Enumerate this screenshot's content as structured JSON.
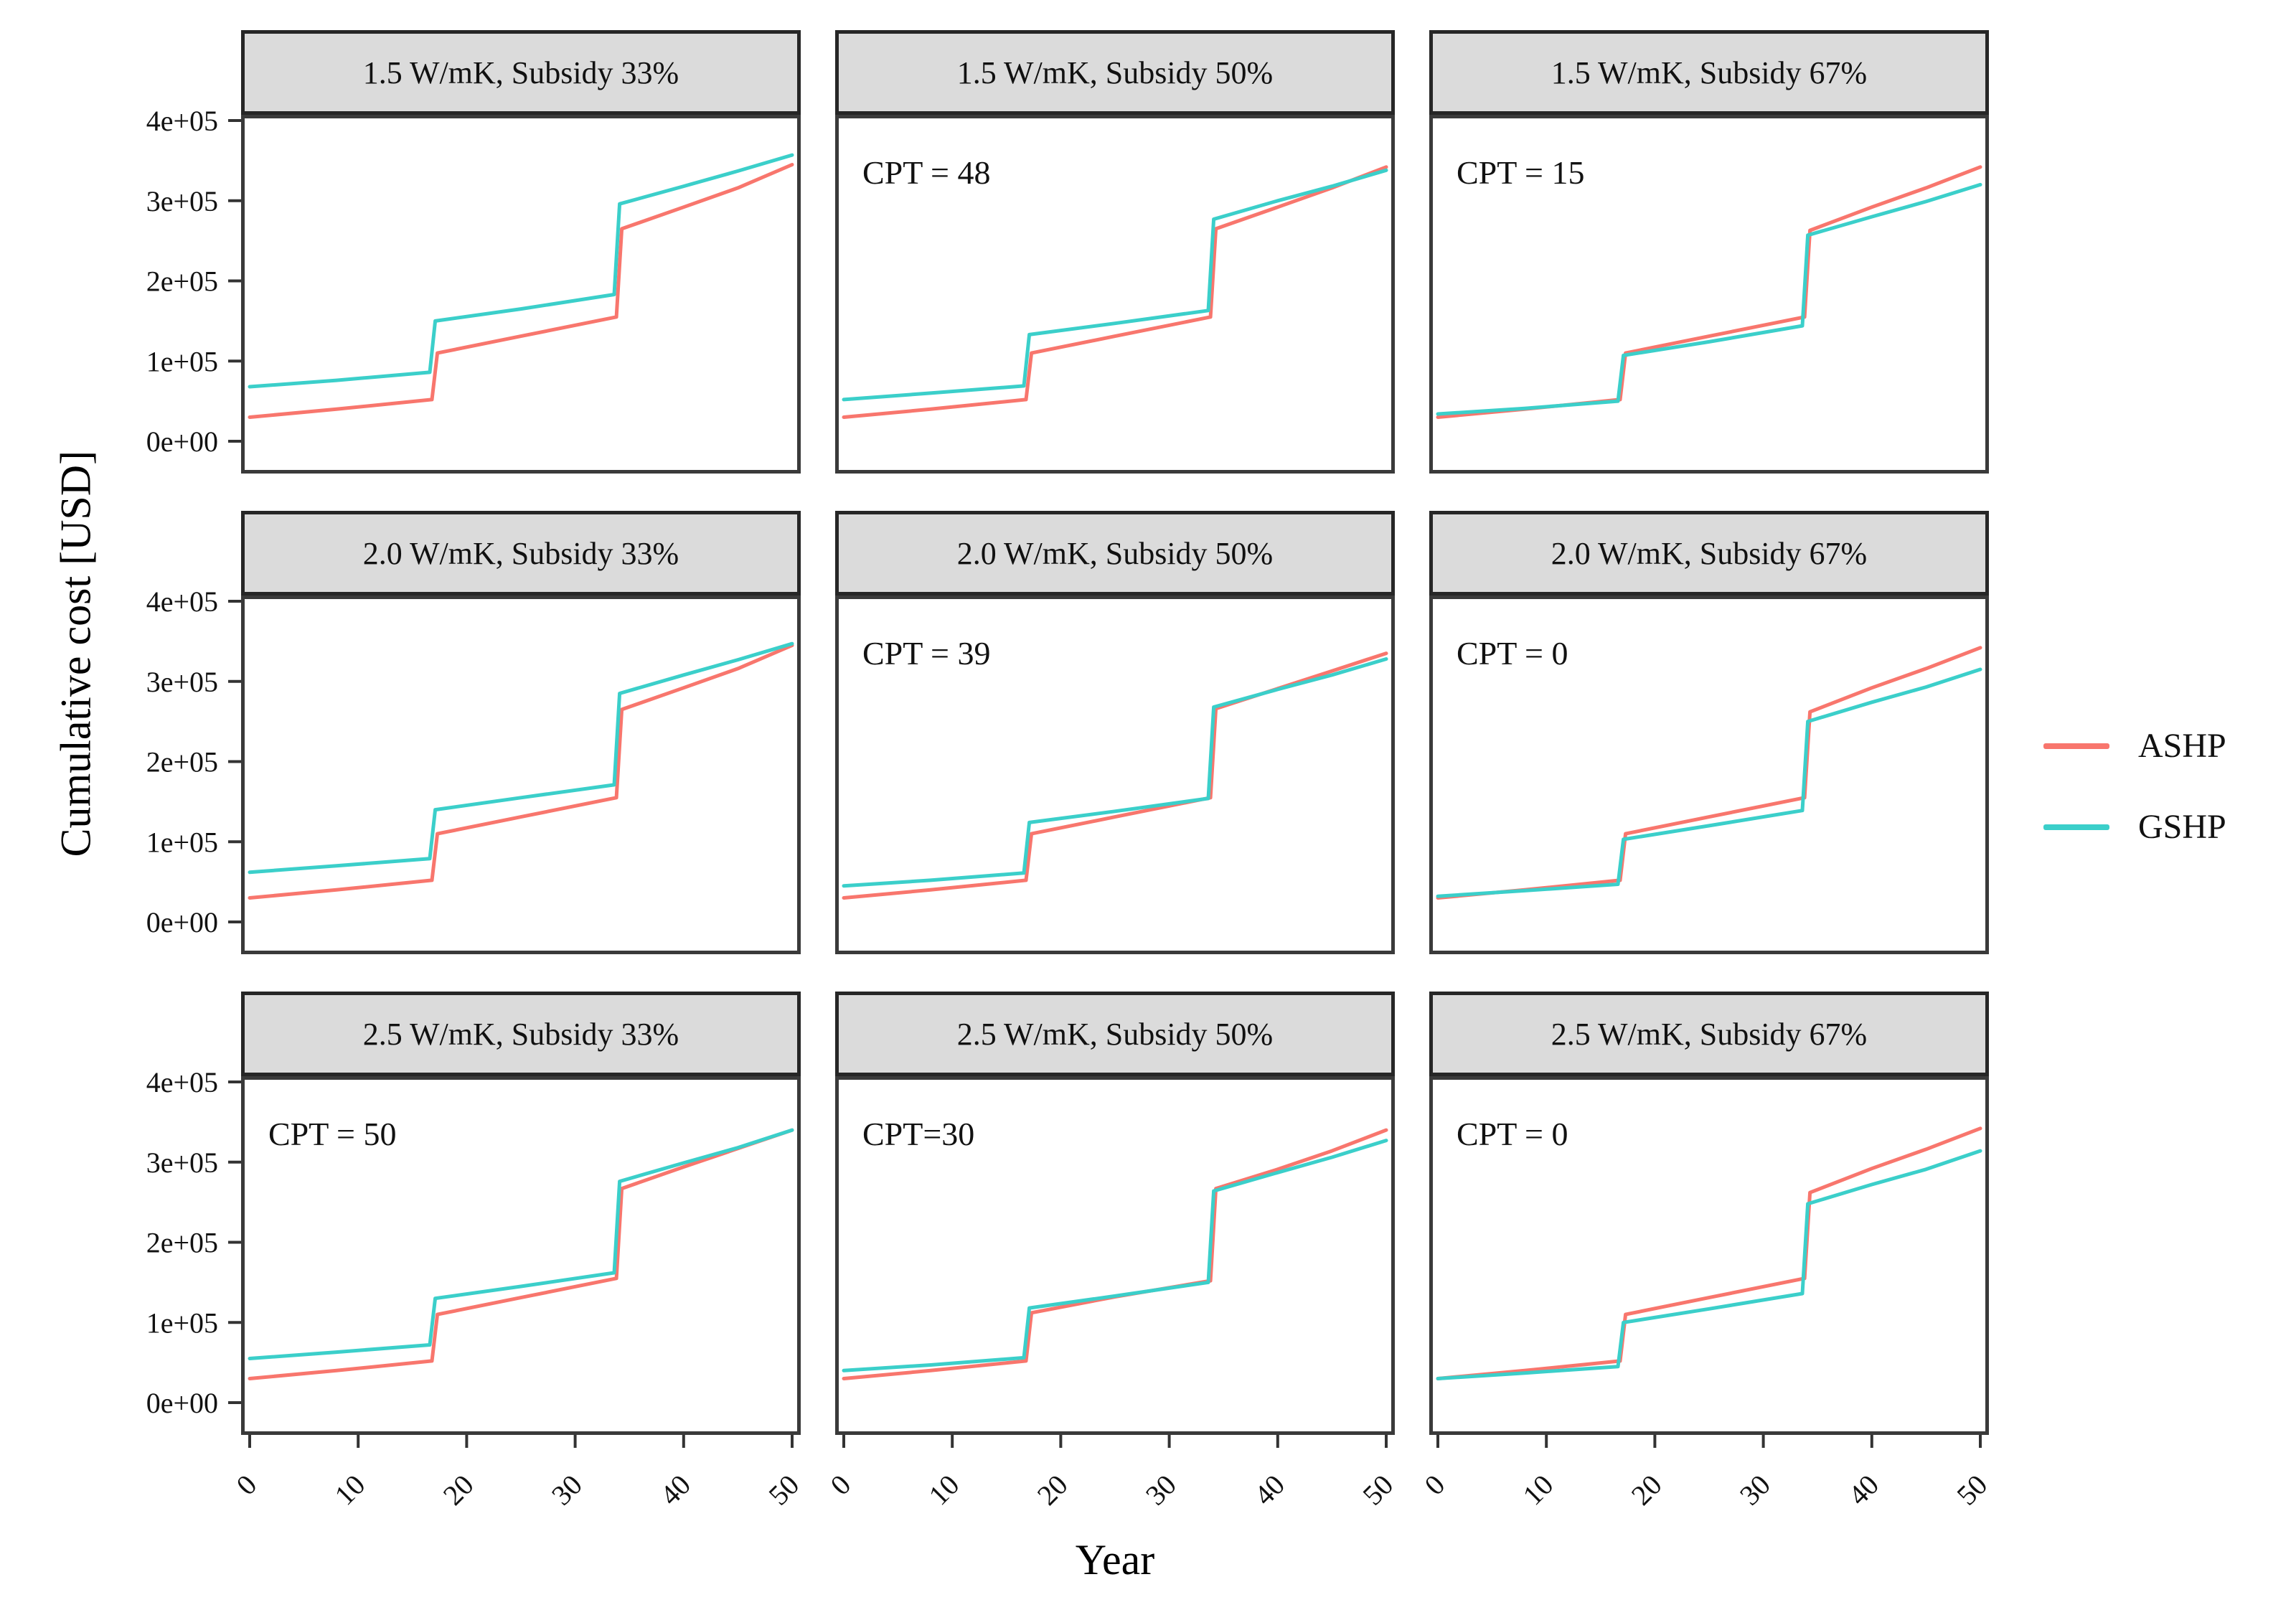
{
  "figure": {
    "y_axis_title": "Cumulative cost [USD]",
    "x_axis_title": "Year",
    "legend": {
      "entries": [
        {
          "label": "ASHP",
          "color": "#F8766D"
        },
        {
          "label": "GSHP",
          "color": "#3BCFCA"
        }
      ]
    }
  },
  "chart_data": {
    "type": "line",
    "layout": "facet-grid-3x3",
    "xlabel": "Year",
    "ylabel": "Cumulative cost [USD]",
    "xlim": [
      0,
      50
    ],
    "ylim": [
      0,
      400000
    ],
    "x_ticks": {
      "values": [
        0,
        10,
        20,
        30,
        40,
        50
      ],
      "labels": [
        "0",
        "10",
        "20",
        "30",
        "40",
        "50"
      ],
      "angle": 45
    },
    "y_ticks": {
      "values": [
        0,
        100000,
        200000,
        300000,
        400000
      ],
      "labels": [
        "0e+00",
        "1e+05",
        "2e+05",
        "3e+05",
        "4e+05"
      ]
    },
    "grid": "off",
    "legend_position": "right",
    "panels": [
      {
        "row": 0,
        "col": 0,
        "title": "1.5 W/mK, Subsidy 33%",
        "annotation": "",
        "series": [
          {
            "name": "ASHP",
            "color": "#F8766D",
            "points": [
              [
                0,
                30000
              ],
              [
                8,
                40000
              ],
              [
                16.8,
                52000
              ],
              [
                17.3,
                110000
              ],
              [
                25,
                131000
              ],
              [
                33.8,
                155000
              ],
              [
                34.3,
                265000
              ],
              [
                40,
                292000
              ],
              [
                45,
                316000
              ],
              [
                50,
                345000
              ]
            ]
          },
          {
            "name": "GSHP",
            "color": "#3BCFCA",
            "points": [
              [
                0,
                68000
              ],
              [
                8,
                76000
              ],
              [
                16.6,
                86000
              ],
              [
                17.1,
                150000
              ],
              [
                25,
                165000
              ],
              [
                33.6,
                183000
              ],
              [
                34.1,
                296000
              ],
              [
                40,
                318000
              ],
              [
                45,
                337000
              ],
              [
                50,
                357000
              ]
            ]
          }
        ]
      },
      {
        "row": 0,
        "col": 1,
        "title": "1.5 W/mK, Subsidy 50%",
        "annotation": "CPT = 48",
        "series": [
          {
            "name": "ASHP",
            "color": "#F8766D",
            "points": [
              [
                0,
                30000
              ],
              [
                8,
                40000
              ],
              [
                16.8,
                52000
              ],
              [
                17.3,
                110000
              ],
              [
                25,
                131000
              ],
              [
                33.8,
                155000
              ],
              [
                34.3,
                265000
              ],
              [
                40,
                292000
              ],
              [
                45,
                316000
              ],
              [
                50,
                342000
              ]
            ]
          },
          {
            "name": "GSHP",
            "color": "#3BCFCA",
            "points": [
              [
                0,
                52000
              ],
              [
                8,
                60000
              ],
              [
                16.6,
                69000
              ],
              [
                17.1,
                133000
              ],
              [
                25,
                147000
              ],
              [
                33.6,
                163000
              ],
              [
                34.1,
                277000
              ],
              [
                40,
                300000
              ],
              [
                45,
                318000
              ],
              [
                50,
                338000
              ]
            ]
          }
        ]
      },
      {
        "row": 0,
        "col": 2,
        "title": "1.5 W/mK, Subsidy 67%",
        "annotation": "CPT = 15",
        "series": [
          {
            "name": "ASHP",
            "color": "#F8766D",
            "points": [
              [
                0,
                30000
              ],
              [
                8,
                40000
              ],
              [
                16.8,
                52000
              ],
              [
                17.3,
                110000
              ],
              [
                25,
                131000
              ],
              [
                33.8,
                155000
              ],
              [
                34.3,
                263000
              ],
              [
                40,
                292000
              ],
              [
                45,
                316000
              ],
              [
                50,
                342000
              ]
            ]
          },
          {
            "name": "GSHP",
            "color": "#3BCFCA",
            "points": [
              [
                0,
                34000
              ],
              [
                8,
                41000
              ],
              [
                16.6,
                50000
              ],
              [
                17.1,
                107000
              ],
              [
                25,
                124000
              ],
              [
                33.6,
                144000
              ],
              [
                34.1,
                257000
              ],
              [
                40,
                280000
              ],
              [
                45,
                299000
              ],
              [
                50,
                320000
              ]
            ]
          }
        ]
      },
      {
        "row": 1,
        "col": 0,
        "title": "2.0 W/mK, Subsidy 33%",
        "annotation": "",
        "series": [
          {
            "name": "ASHP",
            "color": "#F8766D",
            "points": [
              [
                0,
                30000
              ],
              [
                8,
                40000
              ],
              [
                16.8,
                52000
              ],
              [
                17.3,
                110000
              ],
              [
                25,
                131000
              ],
              [
                33.8,
                155000
              ],
              [
                34.3,
                265000
              ],
              [
                40,
                292000
              ],
              [
                45,
                316000
              ],
              [
                50,
                345000
              ]
            ]
          },
          {
            "name": "GSHP",
            "color": "#3BCFCA",
            "points": [
              [
                0,
                62000
              ],
              [
                8,
                70000
              ],
              [
                16.6,
                79000
              ],
              [
                17.1,
                140000
              ],
              [
                25,
                155000
              ],
              [
                33.6,
                171000
              ],
              [
                34.1,
                285000
              ],
              [
                40,
                308000
              ],
              [
                45,
                327000
              ],
              [
                50,
                347000
              ]
            ]
          }
        ]
      },
      {
        "row": 1,
        "col": 1,
        "title": "2.0 W/mK, Subsidy 50%",
        "annotation": "CPT = 39",
        "series": [
          {
            "name": "ASHP",
            "color": "#F8766D",
            "points": [
              [
                0,
                30000
              ],
              [
                8,
                40000
              ],
              [
                16.8,
                52000
              ],
              [
                17.3,
                110000
              ],
              [
                25,
                131000
              ],
              [
                33.8,
                155000
              ],
              [
                34.3,
                266000
              ],
              [
                40,
                291000
              ],
              [
                45,
                313000
              ],
              [
                50,
                335000
              ]
            ]
          },
          {
            "name": "GSHP",
            "color": "#3BCFCA",
            "points": [
              [
                0,
                45000
              ],
              [
                8,
                52000
              ],
              [
                16.6,
                61000
              ],
              [
                17.1,
                124000
              ],
              [
                25,
                138000
              ],
              [
                33.6,
                154000
              ],
              [
                34.1,
                268000
              ],
              [
                40,
                290000
              ],
              [
                45,
                308000
              ],
              [
                50,
                328000
              ]
            ]
          }
        ]
      },
      {
        "row": 1,
        "col": 2,
        "title": "2.0 W/mK, Subsidy 67%",
        "annotation": "CPT = 0",
        "series": [
          {
            "name": "ASHP",
            "color": "#F8766D",
            "points": [
              [
                0,
                30000
              ],
              [
                8,
                40000
              ],
              [
                16.8,
                52000
              ],
              [
                17.3,
                110000
              ],
              [
                25,
                131000
              ],
              [
                33.8,
                155000
              ],
              [
                34.3,
                262000
              ],
              [
                40,
                292000
              ],
              [
                45,
                316000
              ],
              [
                50,
                342000
              ]
            ]
          },
          {
            "name": "GSHP",
            "color": "#3BCFCA",
            "points": [
              [
                0,
                32000
              ],
              [
                8,
                39000
              ],
              [
                16.6,
                47000
              ],
              [
                17.1,
                103000
              ],
              [
                25,
                120000
              ],
              [
                33.6,
                139000
              ],
              [
                34.1,
                250000
              ],
              [
                40,
                274000
              ],
              [
                45,
                293000
              ],
              [
                50,
                315000
              ]
            ]
          }
        ]
      },
      {
        "row": 2,
        "col": 0,
        "title": "2.5 W/mK, Subsidy 33%",
        "annotation": "CPT = 50",
        "series": [
          {
            "name": "ASHP",
            "color": "#F8766D",
            "points": [
              [
                0,
                30000
              ],
              [
                8,
                40000
              ],
              [
                16.8,
                52000
              ],
              [
                17.3,
                110000
              ],
              [
                25,
                131000
              ],
              [
                33.8,
                155000
              ],
              [
                34.3,
                267000
              ],
              [
                40,
                294000
              ],
              [
                45,
                317000
              ],
              [
                50,
                340000
              ]
            ]
          },
          {
            "name": "GSHP",
            "color": "#3BCFCA",
            "points": [
              [
                0,
                55000
              ],
              [
                8,
                63000
              ],
              [
                16.6,
                72000
              ],
              [
                17.1,
                130000
              ],
              [
                25,
                145000
              ],
              [
                33.6,
                162000
              ],
              [
                34.1,
                276000
              ],
              [
                40,
                299000
              ],
              [
                45,
                318000
              ],
              [
                50,
                340000
              ]
            ]
          }
        ]
      },
      {
        "row": 2,
        "col": 1,
        "title": "2.5 W/mK, Subsidy 50%",
        "annotation": "CPT=30",
        "series": [
          {
            "name": "ASHP",
            "color": "#F8766D",
            "points": [
              [
                0,
                30000
              ],
              [
                8,
                40000
              ],
              [
                16.8,
                52000
              ],
              [
                17.3,
                112000
              ],
              [
                25,
                132000
              ],
              [
                33.8,
                152000
              ],
              [
                34.3,
                267000
              ],
              [
                40,
                291000
              ],
              [
                45,
                314000
              ],
              [
                50,
                340000
              ]
            ]
          },
          {
            "name": "GSHP",
            "color": "#3BCFCA",
            "points": [
              [
                0,
                40000
              ],
              [
                8,
                47000
              ],
              [
                16.6,
                56000
              ],
              [
                17.1,
                118000
              ],
              [
                25,
                133000
              ],
              [
                33.6,
                150000
              ],
              [
                34.1,
                264000
              ],
              [
                40,
                287000
              ],
              [
                45,
                306000
              ],
              [
                50,
                327000
              ]
            ]
          }
        ]
      },
      {
        "row": 2,
        "col": 2,
        "title": "2.5 W/mK, Subsidy 67%",
        "annotation": "CPT = 0",
        "series": [
          {
            "name": "ASHP",
            "color": "#F8766D",
            "points": [
              [
                0,
                30000
              ],
              [
                8,
                40000
              ],
              [
                16.8,
                52000
              ],
              [
                17.3,
                110000
              ],
              [
                25,
                131000
              ],
              [
                33.8,
                155000
              ],
              [
                34.3,
                262000
              ],
              [
                40,
                292000
              ],
              [
                45,
                316000
              ],
              [
                50,
                342000
              ]
            ]
          },
          {
            "name": "GSHP",
            "color": "#3BCFCA",
            "points": [
              [
                0,
                30000
              ],
              [
                8,
                37000
              ],
              [
                16.6,
                45000
              ],
              [
                17.1,
                100000
              ],
              [
                25,
                117000
              ],
              [
                33.6,
                136000
              ],
              [
                34.1,
                248000
              ],
              [
                40,
                272000
              ],
              [
                45,
                291000
              ],
              [
                50,
                314000
              ]
            ]
          }
        ]
      }
    ]
  }
}
